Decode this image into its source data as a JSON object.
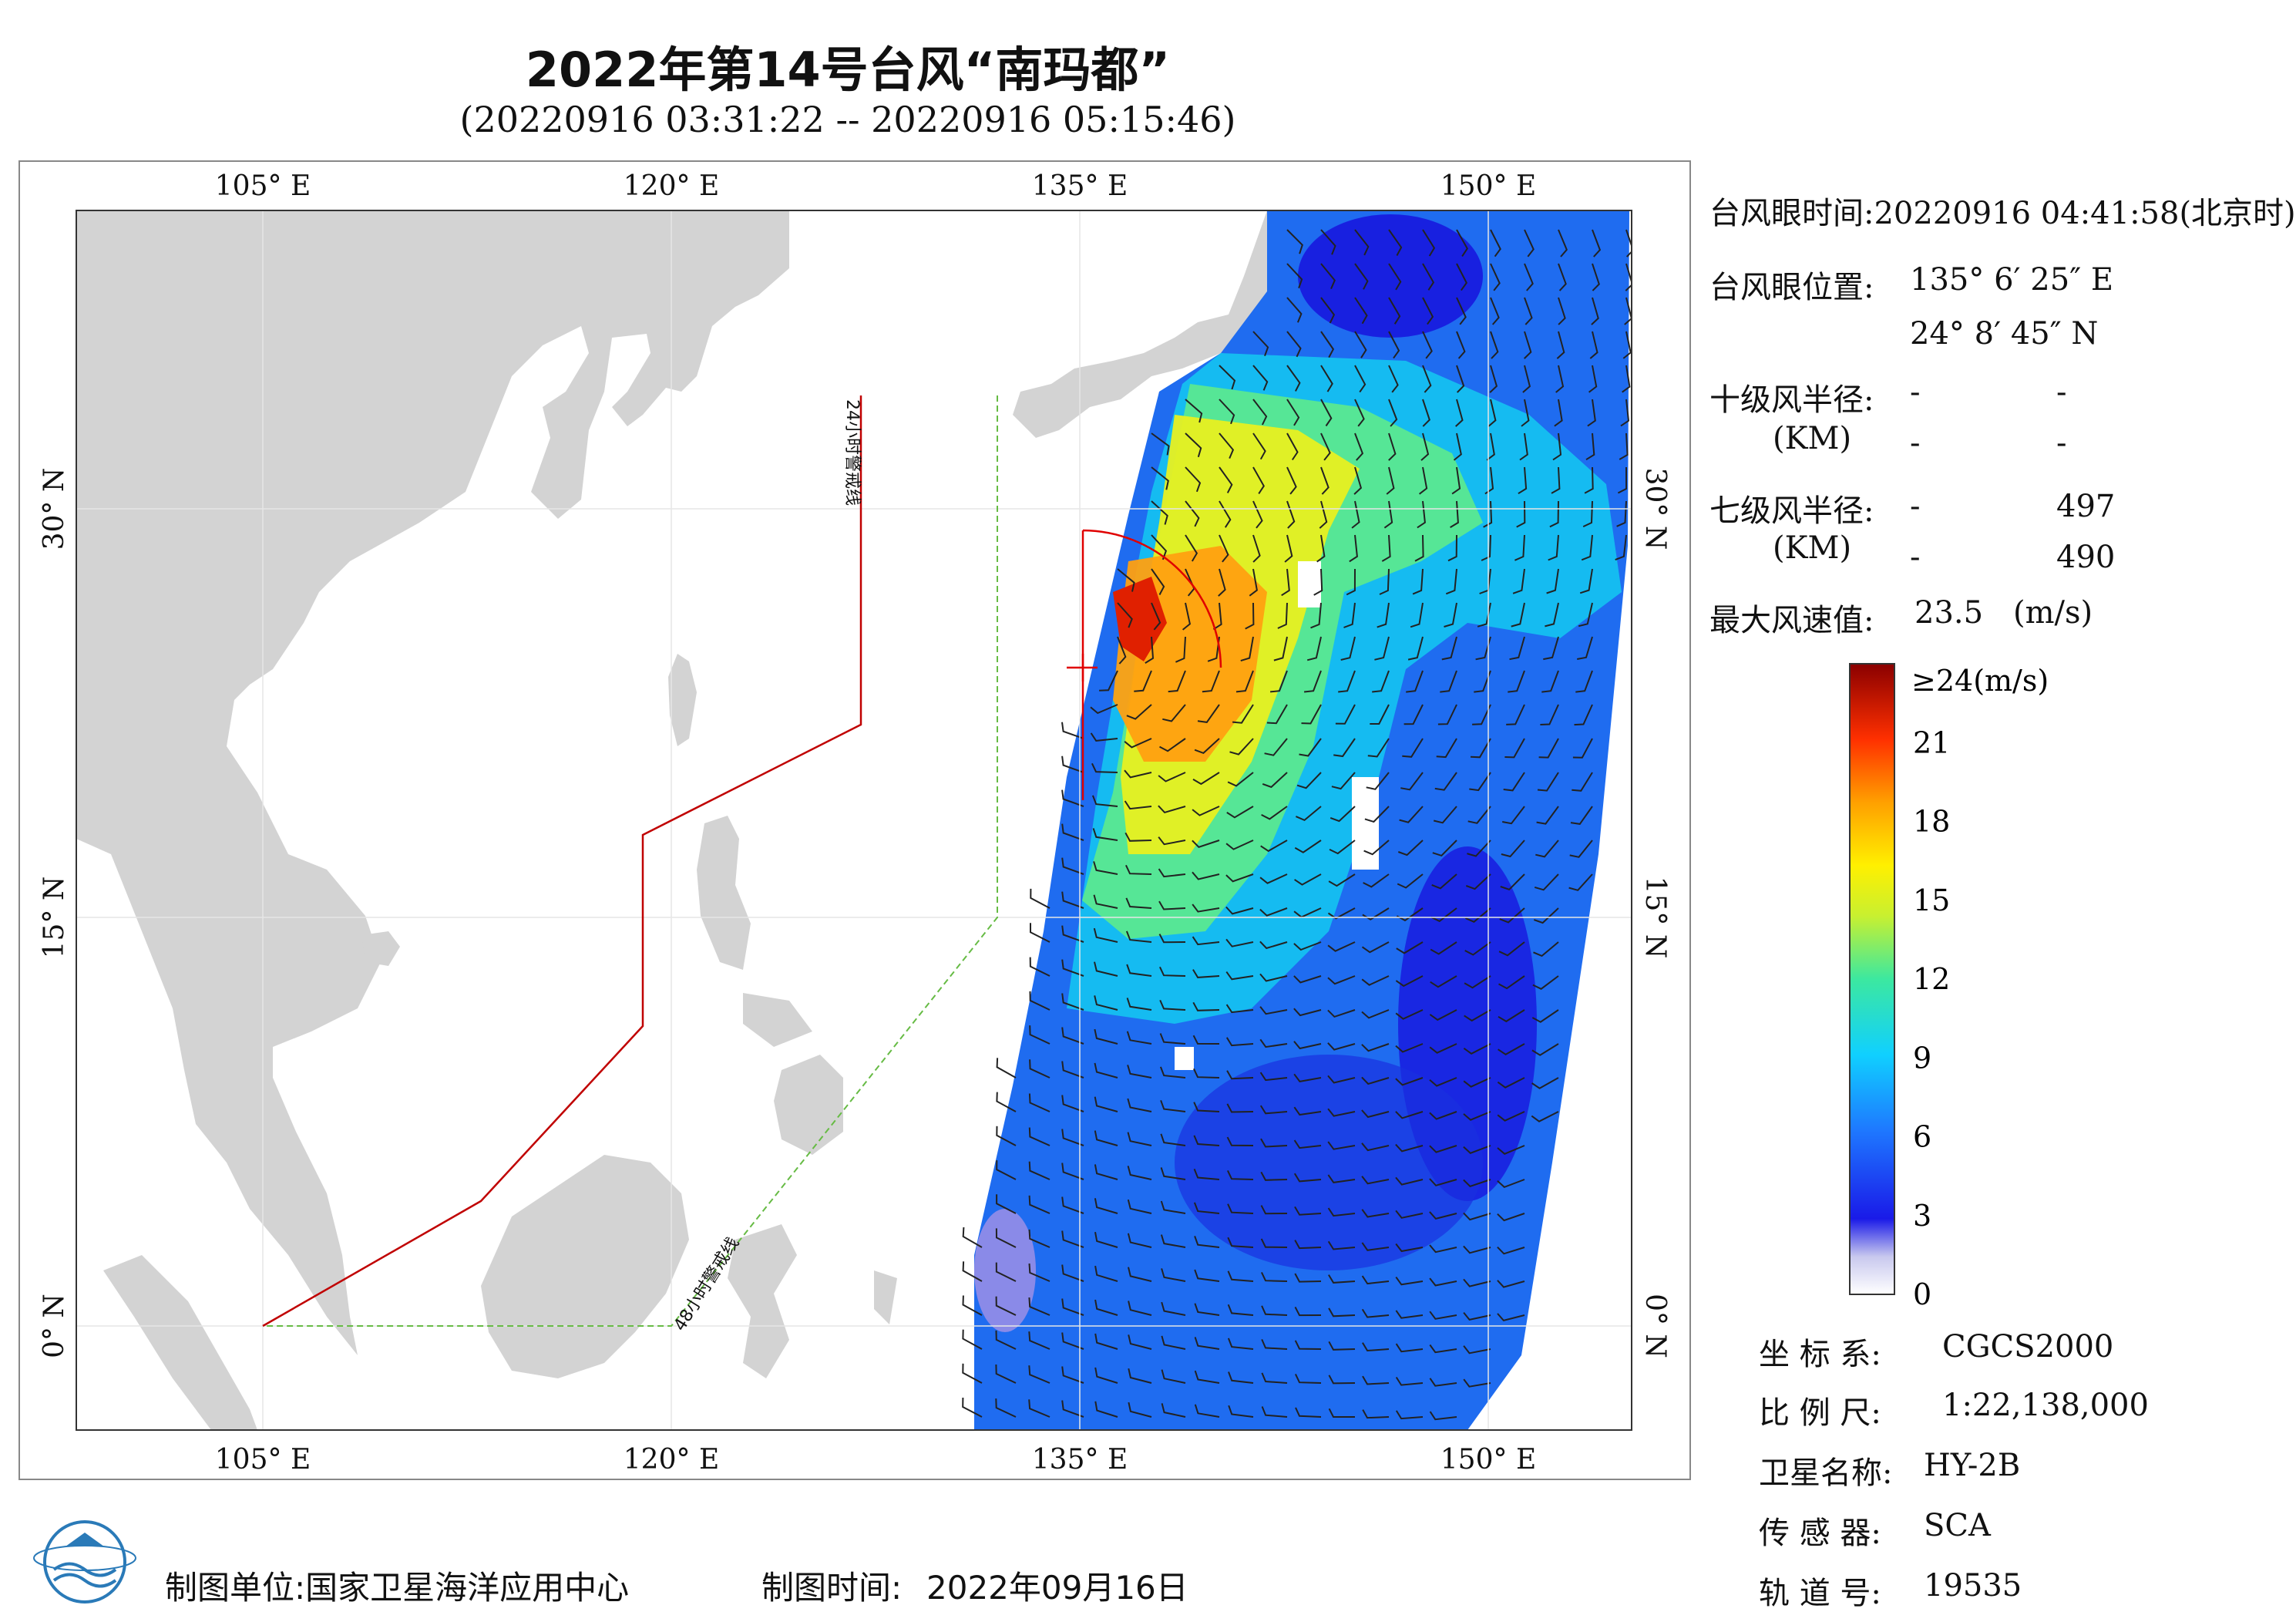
{
  "title": "2022年第14号台风“南玛都”",
  "subtitle": "(20220916 03:31:22 -- 20220916 05:15:46)",
  "map": {
    "lon_ticks": [
      "105° E",
      "120° E",
      "135° E",
      "150° E"
    ],
    "lat_ticks": [
      "30° N",
      "15° N",
      "0° N"
    ],
    "warning_24h": "24小时警戒线",
    "warning_48h": "48小时警戒线",
    "colors": {
      "land": "#d3d3d3",
      "sea": "#ffffff",
      "line24": "#c00000",
      "line48": "#66bb44",
      "eye": "#e00000"
    }
  },
  "info": {
    "eye_time_label": "台风眼时间:",
    "eye_time_value": "20220916 04:41:58(北京时)",
    "eye_pos_label": "台风眼位置:",
    "eye_lon": "135° 6′ 25″ E",
    "eye_lat": "24° 8′ 45″ N",
    "r10_label": "十级风半径:",
    "r10_unit": "(KM)",
    "r10_values": [
      "-",
      "-",
      "-",
      "-"
    ],
    "r7_label": "七级风半径:",
    "r7_unit": "(KM)",
    "r7_values": [
      "-",
      "497",
      "-",
      "490"
    ],
    "max_wind_label": "最大风速值:",
    "max_wind_value": "23.5",
    "max_wind_unit": "(m/s)"
  },
  "colorbar": {
    "top_label": "≥24(m/s)",
    "ticks": [
      "21",
      "18",
      "15",
      "12",
      "9",
      "6",
      "3",
      "0"
    ],
    "tick_values": [
      21,
      18,
      15,
      12,
      9,
      6,
      3,
      0
    ],
    "min": 0,
    "max": 24
  },
  "meta": {
    "crs_label": "坐 标 系:",
    "crs_value": "CGCS2000",
    "scale_label": "比 例 尺:",
    "scale_value": "1:22,138,000",
    "sat_label": "卫星名称:",
    "sat_value": "HY-2B",
    "sensor_label": "传 感 器:",
    "sensor_value": "SCA",
    "orbit_label": "轨 道 号:",
    "orbit_value": "19535"
  },
  "footer": {
    "org_label": "制图单位:",
    "org_value": "国家卫星海洋应用中心",
    "date_label": "制图时间:",
    "date_value": "2022年09月16日"
  }
}
